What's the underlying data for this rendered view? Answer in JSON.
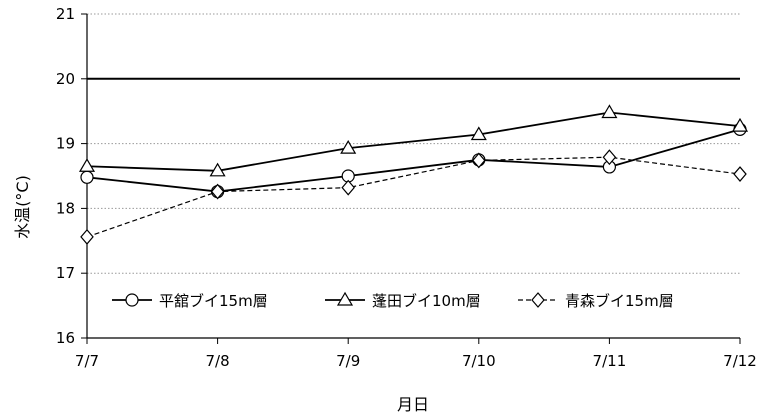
{
  "chart_data": {
    "type": "line",
    "xlabel": "月日",
    "ylabel": "水温(°C)",
    "categories": [
      "7/7",
      "7/8",
      "7/9",
      "7/10",
      "7/11",
      "7/12"
    ],
    "ylim": [
      16,
      21
    ],
    "yticks": [
      16,
      17,
      18,
      19,
      20,
      21
    ],
    "grid": "horizontal dotted",
    "reference_line": 20,
    "legend_position": "bottom-inside",
    "series": [
      {
        "name": "平舘ブイ15m層",
        "marker": "circle",
        "line": "solid",
        "values": [
          18.48,
          18.26,
          18.5,
          18.75,
          18.64,
          19.22
        ]
      },
      {
        "name": "蓬田ブイ10m層",
        "marker": "triangle",
        "line": "solid",
        "values": [
          18.65,
          18.58,
          18.93,
          19.14,
          19.48,
          19.27
        ]
      },
      {
        "name": "青森ブイ15m層",
        "marker": "diamond",
        "line": "dashed",
        "values": [
          17.56,
          18.26,
          18.32,
          18.74,
          18.79,
          18.53
        ]
      }
    ]
  }
}
